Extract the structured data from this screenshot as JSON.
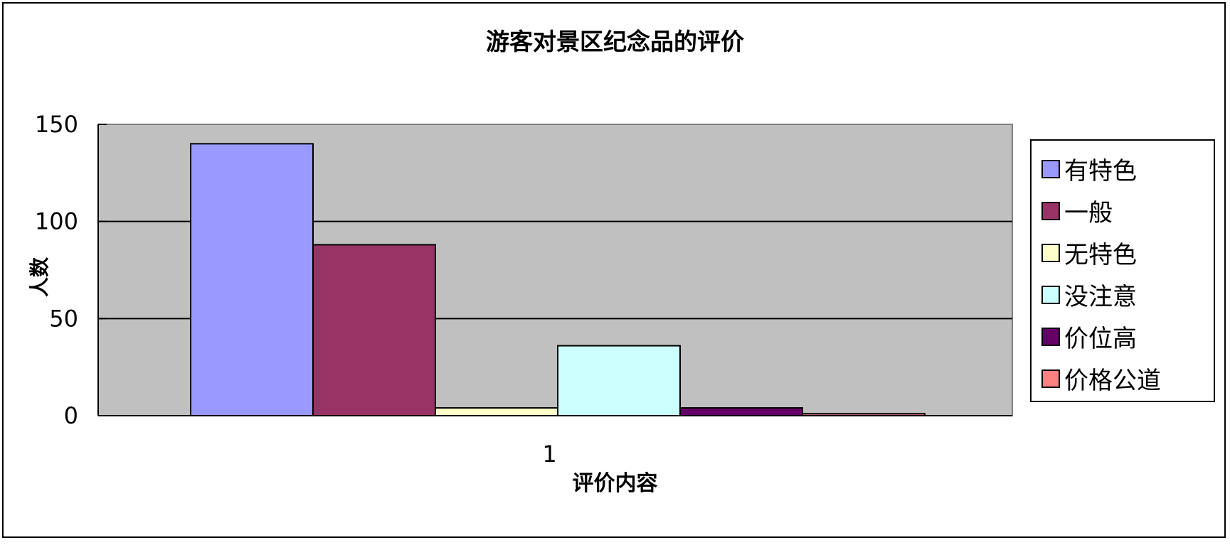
{
  "chart_data": {
    "type": "bar",
    "title": "游客对景区纪念品的评价",
    "xlabel": "评价内容",
    "ylabel": "人数",
    "categories": [
      "1"
    ],
    "ylim": [
      0,
      150
    ],
    "yticks": [
      "0",
      "50",
      "100",
      "150"
    ],
    "grid": true,
    "legend_position": "right",
    "series": [
      {
        "name": "有特色",
        "values": [
          140
        ],
        "color": "#9999FF"
      },
      {
        "name": "一般",
        "values": [
          88
        ],
        "color": "#993366"
      },
      {
        "name": "无特色",
        "values": [
          4
        ],
        "color": "#FFFFCC"
      },
      {
        "name": "没注意",
        "values": [
          36
        ],
        "color": "#CCFFFF"
      },
      {
        "name": "价位高",
        "values": [
          4
        ],
        "color": "#660066"
      },
      {
        "name": "价格公道",
        "values": [
          1
        ],
        "color": "#FF8080"
      }
    ],
    "plot_background": "#C0C0C0"
  }
}
